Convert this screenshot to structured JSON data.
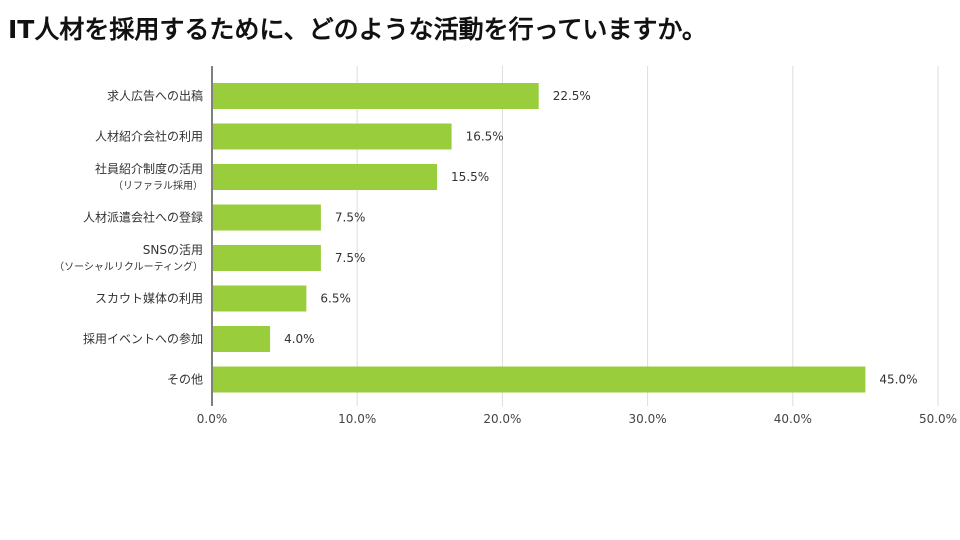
{
  "chart_data": {
    "type": "bar",
    "orientation": "horizontal",
    "title": "IT人材を採用するために、どのような活動を行っていますか。",
    "categories": [
      {
        "label": "求人広告への出稿",
        "sublabel": ""
      },
      {
        "label": "人材紹介会社の利用",
        "sublabel": ""
      },
      {
        "label": "社員紹介制度の活用",
        "sublabel": "（リファラル採用）"
      },
      {
        "label": "人材派遣会社への登録",
        "sublabel": ""
      },
      {
        "label": "SNSの活用",
        "sublabel": "（ソーシャルリクルーティング）"
      },
      {
        "label": "スカウト媒体の利用",
        "sublabel": ""
      },
      {
        "label": "採用イベントへの参加",
        "sublabel": ""
      },
      {
        "label": "その他",
        "sublabel": ""
      }
    ],
    "values": [
      22.5,
      16.5,
      15.5,
      7.5,
      7.5,
      6.5,
      4.0,
      45.0
    ],
    "data_labels": [
      "22.5%",
      "16.5%",
      "15.5%",
      "7.5%",
      "7.5%",
      "6.5%",
      "4.0%",
      "45.0%"
    ],
    "xlim": [
      0,
      50
    ],
    "x_ticks": [
      "0.0%",
      "10.0%",
      "20.0%",
      "30.0%",
      "40.0%",
      "50.0%"
    ],
    "grid": true,
    "bar_color": "#9ACD3B",
    "grid_color": "#DDDDDD",
    "axis_color": "#555555"
  }
}
